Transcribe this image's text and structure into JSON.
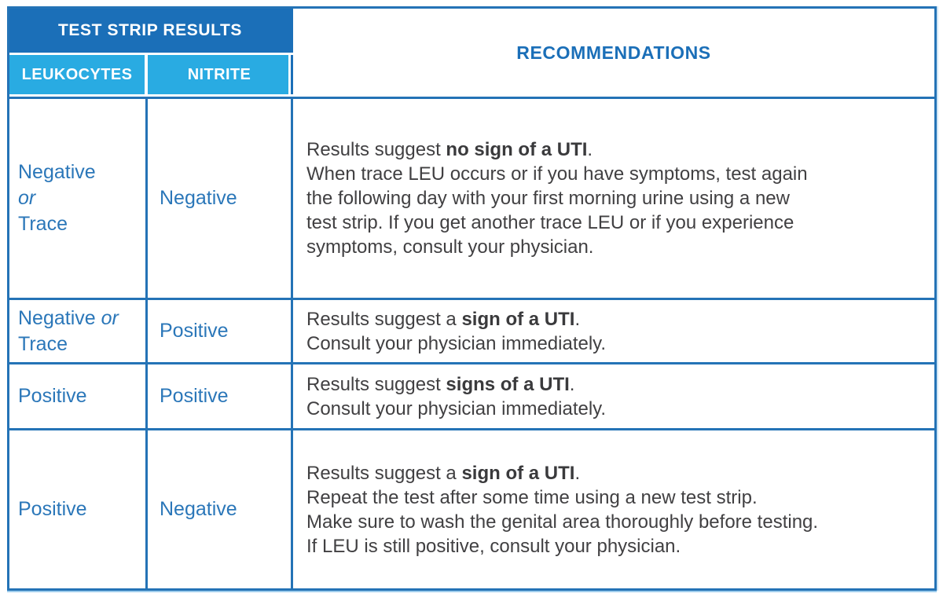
{
  "table": {
    "colors": {
      "header_dark": "#1b6fb8",
      "header_light": "#29abe2",
      "border": "#2473b6",
      "value_text": "#2b77b9",
      "body_text": "#414042"
    },
    "header": {
      "group_title": "TEST STRIP RESULTS",
      "col_leukocytes": "LEUKOCYTES",
      "col_nitrite": "NITRITE",
      "col_recommendations": "RECOMMENDATIONS"
    },
    "rows": [
      {
        "leukocytes": {
          "line1": "Negative",
          "line2_italic": "or",
          "line3": "Trace"
        },
        "nitrite": "Negative",
        "rec": {
          "l1_pre": "Results suggest ",
          "l1_bold": "no sign of a UTI",
          "l1_post": ".",
          "l2": "When trace LEU occurs or if you have symptoms, test again",
          "l3": "the following day with your first morning urine using a new",
          "l4": "test strip. If you get another trace LEU or if you experience",
          "l5": "symptoms, consult your physician."
        }
      },
      {
        "leukocytes": {
          "line1": "Negative ",
          "line1_italic": "or",
          "line2": "Trace"
        },
        "nitrite": "Positive",
        "rec": {
          "l1_pre": "Results suggest a ",
          "l1_bold": "sign of a UTI",
          "l1_post": ".",
          "l2": "Consult your physician immediately."
        }
      },
      {
        "leukocytes": {
          "line1": "Positive"
        },
        "nitrite": "Positive",
        "rec": {
          "l1_pre": "Results suggest ",
          "l1_bold": "signs of a UTI",
          "l1_post": ".",
          "l2": "Consult your physician immediately."
        }
      },
      {
        "leukocytes": {
          "line1": "Positive"
        },
        "nitrite": "Negative",
        "rec": {
          "l1_pre": "Results suggest a ",
          "l1_bold": "sign of a UTI",
          "l1_post": ".",
          "l2": "Repeat the test after some time using a new test strip.",
          "l3": "Make sure to wash the genital area thoroughly before testing.",
          "l4": "If LEU is still positive, consult your physician."
        }
      }
    ]
  }
}
